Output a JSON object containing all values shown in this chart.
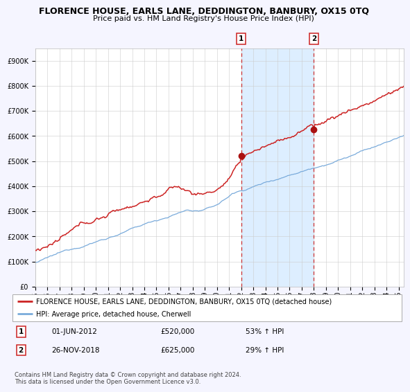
{
  "title": "FLORENCE HOUSE, EARLS LANE, DEDDINGTON, BANBURY, OX15 0TQ",
  "subtitle": "Price paid vs. HM Land Registry's House Price Index (HPI)",
  "ylim": [
    0,
    950000
  ],
  "yticks": [
    0,
    100000,
    200000,
    300000,
    400000,
    500000,
    600000,
    700000,
    800000,
    900000
  ],
  "ytick_labels": [
    "£0",
    "£100K",
    "£200K",
    "£300K",
    "£400K",
    "£500K",
    "£600K",
    "£700K",
    "£800K",
    "£900K"
  ],
  "hpi_color": "#7aabdb",
  "price_color": "#cc2222",
  "bg_color": "#f5f5ff",
  "plot_bg": "#ffffff",
  "shade_color": "#ddeeff",
  "vline_color": "#cc3333",
  "marker_color": "#aa1111",
  "sale1_idx": 204,
  "sale1_price": 520000,
  "sale2_idx": 276,
  "sale2_price": 625000,
  "n_months": 366,
  "start_year": 1995,
  "end_year": 2025,
  "legend_label_price": "FLORENCE HOUSE, EARLS LANE, DEDDINGTON, BANBURY, OX15 0TQ (detached house)",
  "legend_label_hpi": "HPI: Average price, detached house, Cherwell",
  "note1_num": "1",
  "note1_date": "01-JUN-2012",
  "note1_price": "£520,000",
  "note1_pct": "53% ↑ HPI",
  "note2_num": "2",
  "note2_date": "26-NOV-2018",
  "note2_price": "£625,000",
  "note2_pct": "29% ↑ HPI",
  "copyright_text": "Contains HM Land Registry data © Crown copyright and database right 2024.\nThis data is licensed under the Open Government Licence v3.0.",
  "title_fontsize": 9,
  "subtitle_fontsize": 8,
  "tick_fontsize": 7,
  "legend_fontsize": 7,
  "note_fontsize": 7.5,
  "copyright_fontsize": 6
}
